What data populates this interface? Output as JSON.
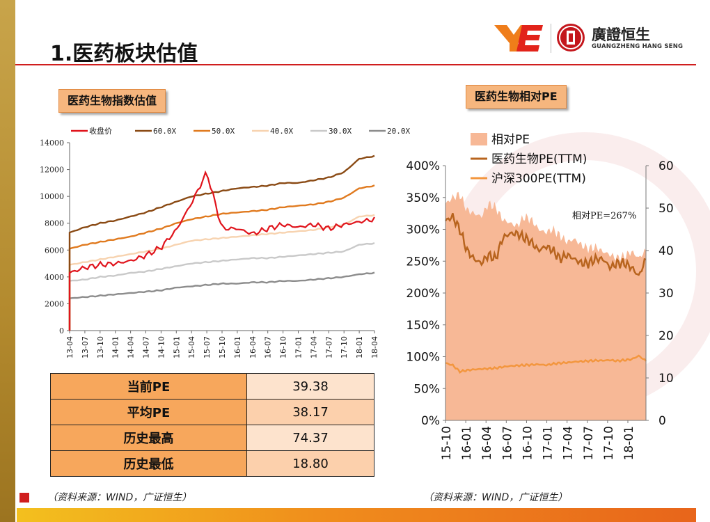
{
  "header": {
    "title": "1.医药板块估值",
    "logo_cn": "廣證恒生",
    "logo_en": "GUANGZHENG HANG SENG"
  },
  "left": {
    "tag": "医药生物指数估值",
    "source": "（资料来源：WIND，广证恒生）"
  },
  "right": {
    "tag": "医药生物相对PE",
    "source": "（资料来源：WIND，广证恒生）",
    "annotation": "相对PE=267%"
  },
  "stats": [
    {
      "label": "当前PE",
      "value": "39.38"
    },
    {
      "label": "平均PE",
      "value": "38.17"
    },
    {
      "label": "历史最高",
      "value": "74.37"
    },
    {
      "label": "历史最低",
      "value": "18.80"
    }
  ],
  "colors": {
    "close": "#e0141c",
    "pe60": "#8a4a14",
    "pe50": "#e07a1f",
    "pe40": "#f7d3b0",
    "pe30": "#c9c9c9",
    "pe20": "#8c8c8c",
    "rel_area": "#f7b896",
    "pharma_pe": "#b8641e",
    "hs300_pe": "#f3963e",
    "accent_red": "#d01e1e"
  },
  "chart_data": [
    {
      "type": "line",
      "x_ticks": [
        "13-04",
        "13-07",
        "13-10",
        "14-01",
        "14-04",
        "14-07",
        "14-10",
        "15-01",
        "15-04",
        "15-07",
        "15-10",
        "16-01",
        "16-04",
        "16-07",
        "16-10",
        "17-01",
        "17-04",
        "17-07",
        "17-10",
        "18-01",
        "18-04"
      ],
      "y_ticks": [
        "0",
        "2000",
        "4000",
        "6000",
        "8000",
        "10000",
        "12000",
        "14000"
      ],
      "ylim": [
        0,
        14000
      ],
      "legend_position": "top",
      "series": [
        {
          "name": "收盘价",
          "color": "#e0141c",
          "values": [
            4300,
            4700,
            4900,
            5000,
            5200,
            5600,
            6200,
            7500,
            9500,
            11800,
            7600,
            7600,
            7200,
            7600,
            7900,
            7700,
            7900,
            7600,
            7900,
            8100,
            8300
          ]
        },
        {
          "name": "60.0X",
          "color": "#8a4a14",
          "values": [
            7300,
            7700,
            8000,
            8200,
            8500,
            8800,
            9200,
            9600,
            10000,
            10200,
            10400,
            10600,
            10700,
            10800,
            11000,
            11000,
            11200,
            11400,
            11800,
            12800,
            13000
          ]
        },
        {
          "name": "50.0X",
          "color": "#e07a1f",
          "values": [
            6100,
            6400,
            6600,
            6800,
            7000,
            7300,
            7600,
            8000,
            8300,
            8500,
            8700,
            8800,
            8900,
            9000,
            9200,
            9300,
            9400,
            9600,
            9900,
            10600,
            10800
          ]
        },
        {
          "name": "40.0X",
          "color": "#f7d3b0",
          "values": [
            4900,
            5100,
            5300,
            5500,
            5700,
            5900,
            6100,
            6400,
            6700,
            6800,
            6900,
            7000,
            7100,
            7200,
            7300,
            7400,
            7500,
            7700,
            7900,
            8500,
            8600
          ]
        },
        {
          "name": "30.0X",
          "color": "#c9c9c9",
          "values": [
            3700,
            3800,
            4000,
            4100,
            4300,
            4400,
            4600,
            4800,
            5000,
            5100,
            5200,
            5300,
            5400,
            5400,
            5500,
            5600,
            5700,
            5800,
            5900,
            6400,
            6500
          ]
        },
        {
          "name": "20.0X",
          "color": "#8c8c8c",
          "values": [
            2400,
            2500,
            2600,
            2700,
            2800,
            2900,
            3000,
            3200,
            3300,
            3400,
            3500,
            3500,
            3600,
            3600,
            3700,
            3700,
            3800,
            3900,
            4000,
            4200,
            4300
          ]
        }
      ]
    },
    {
      "type": "area",
      "x_ticks": [
        "15-10",
        "16-01",
        "16-04",
        "16-07",
        "16-10",
        "17-01",
        "17-04",
        "17-07",
        "17-10",
        "18-01"
      ],
      "y_left_ticks": [
        "0%",
        "50%",
        "100%",
        "150%",
        "200%",
        "250%",
        "300%",
        "350%",
        "400%"
      ],
      "y_right_ticks": [
        "0",
        "10",
        "20",
        "30",
        "40",
        "50",
        "60"
      ],
      "ylim_left": [
        0,
        4.0
      ],
      "ylim_right": [
        0,
        60
      ],
      "legend_position": "top",
      "series": [
        {
          "name": "相对PE",
          "axis": "left",
          "color": "#f7b896",
          "values": [
            3.4,
            3.5,
            3.55,
            3.3,
            3.25,
            3.2,
            3.4,
            3.35,
            3.15,
            3.1,
            3.05,
            3.2,
            3.15,
            3.0,
            2.95,
            3.0,
            2.9,
            2.8,
            2.85,
            2.75,
            2.7,
            2.72,
            2.65,
            2.6,
            2.55,
            2.58,
            2.65,
            2.55,
            2.67
          ]
        },
        {
          "name": "医药生物PE(TTM)",
          "axis": "right",
          "color": "#b8641e",
          "values": [
            47,
            48,
            45,
            40,
            38,
            37,
            39,
            38,
            43,
            44,
            44,
            43,
            42,
            40,
            41,
            40,
            38,
            39,
            38,
            37,
            37,
            38,
            38,
            36,
            37,
            37,
            36,
            34,
            38
          ]
        },
        {
          "name": "沪深300PE(TTM)",
          "axis": "right",
          "color": "#f3963e",
          "values": [
            13.5,
            13.0,
            11.5,
            11.8,
            12.0,
            12.1,
            12.2,
            12.3,
            12.6,
            12.8,
            12.9,
            13.0,
            13.1,
            13.2,
            13.0,
            13.3,
            13.5,
            13.6,
            13.8,
            13.9,
            14.0,
            14.1,
            14.1,
            14.2,
            14.0,
            14.2,
            14.4,
            15.2,
            14.0
          ]
        }
      ]
    }
  ]
}
